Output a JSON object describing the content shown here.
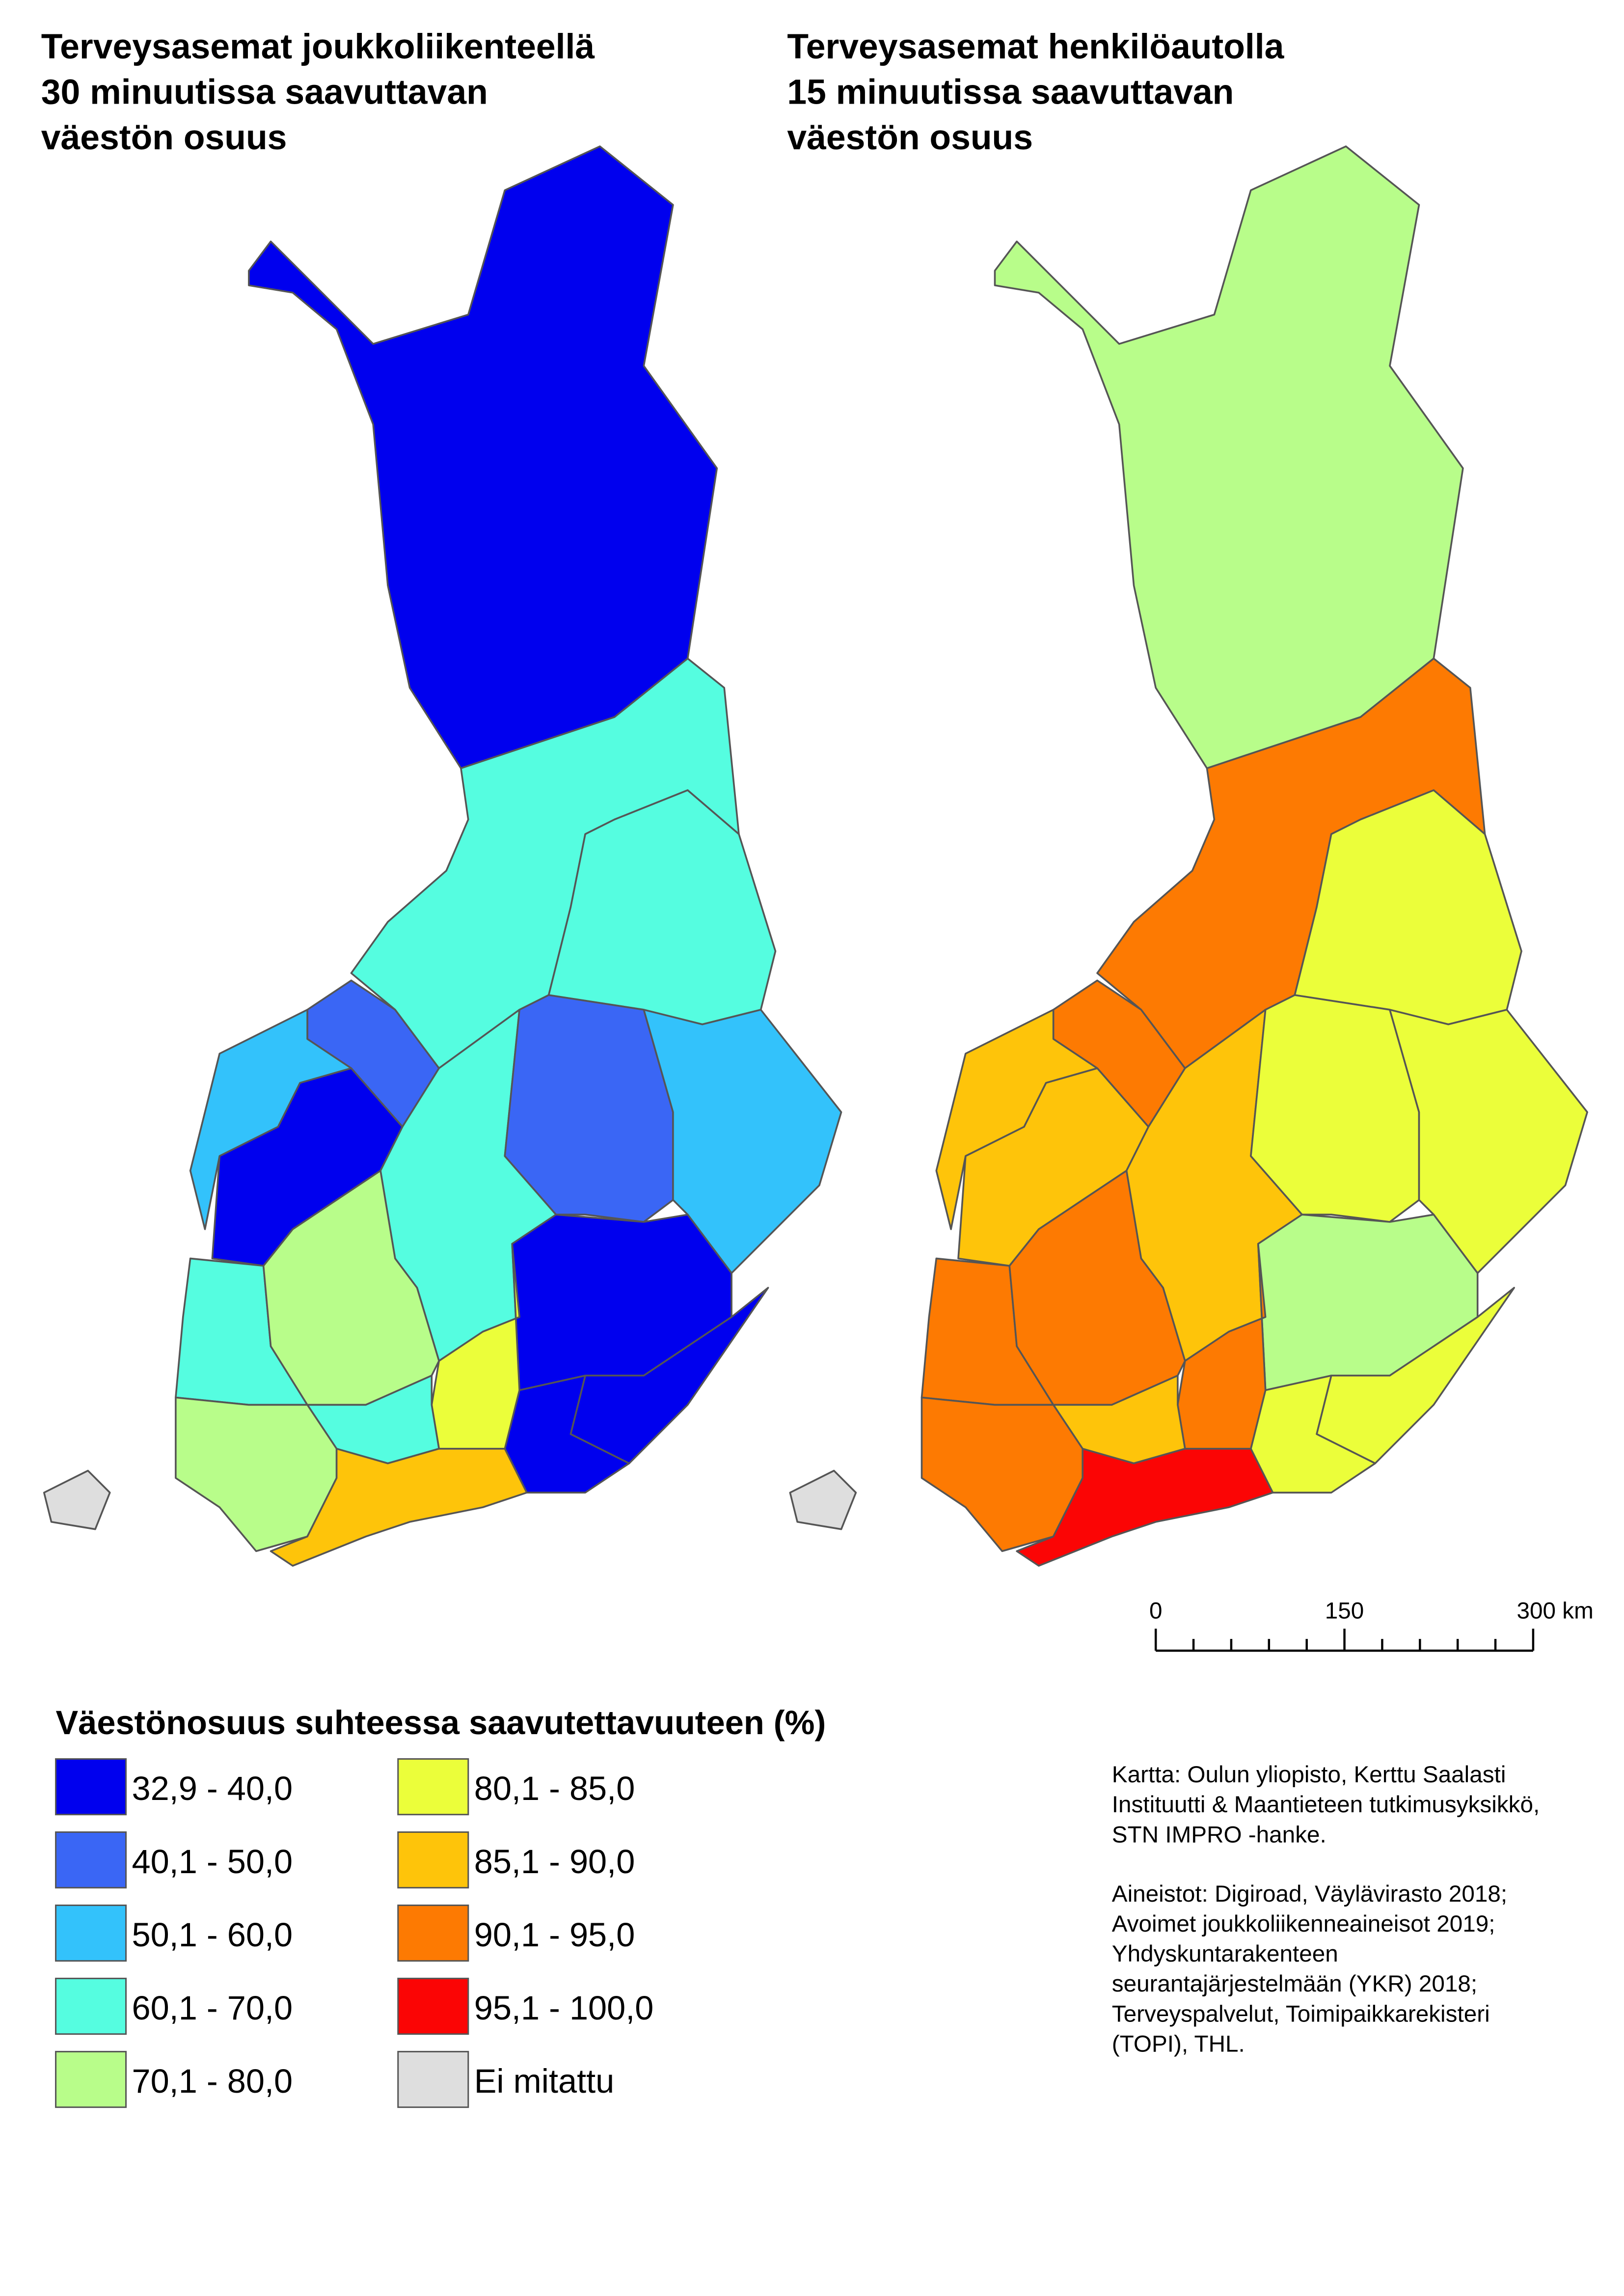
{
  "maps": [
    {
      "title": [
        "Terveysasemat joukkoliikenteellä",
        "30 minuutissa saavuttavan",
        "väestön osuus"
      ]
    },
    {
      "title": [
        "Terveysasemat henkilöautolla",
        "15 minuutissa saavuttavan",
        "väestön osuus"
      ]
    }
  ],
  "legend": {
    "title": "Väestönosuus suhteessa saavutettavuuteen (%)",
    "items": [
      {
        "label": "32,9 - 40,0",
        "color": "#0000ee"
      },
      {
        "label": "40,1 - 50,0",
        "color": "#3a66f5"
      },
      {
        "label": "50,1 - 60,0",
        "color": "#33c2fb"
      },
      {
        "label": "60,1 - 70,0",
        "color": "#55fde0"
      },
      {
        "label": "70,1 - 80,0",
        "color": "#b8fd8a"
      },
      {
        "label": "80,1 - 85,0",
        "color": "#ebfe3a"
      },
      {
        "label": "85,1 - 90,0",
        "color": "#fec40a"
      },
      {
        "label": "90,1 - 95,0",
        "color": "#fd7a02"
      },
      {
        "label": "95,1 - 100,0",
        "color": "#fb0505"
      },
      {
        "label": "Ei mitattu",
        "color": "#dedede"
      }
    ]
  },
  "scale_bar": {
    "labels": [
      "0",
      "150",
      "300 km"
    ]
  },
  "credits": [
    [
      "Kartta: Oulun yliopisto, Kerttu Saalasti",
      "Instituutti & Maantieteen tutkimusyksikkö,",
      "STN IMPRO -hanke."
    ],
    [
      "Aineistot: Digiroad, Väylävirasto 2018;",
      "Avoimet joukkoliikenneaineisot 2019;",
      "Yhdyskuntarakenteen",
      "seurantajärjestelmään (YKR) 2018;",
      "Terveyspalvelut, Toimipaikkarekisteri",
      "(TOPI), THL."
    ]
  ]
}
